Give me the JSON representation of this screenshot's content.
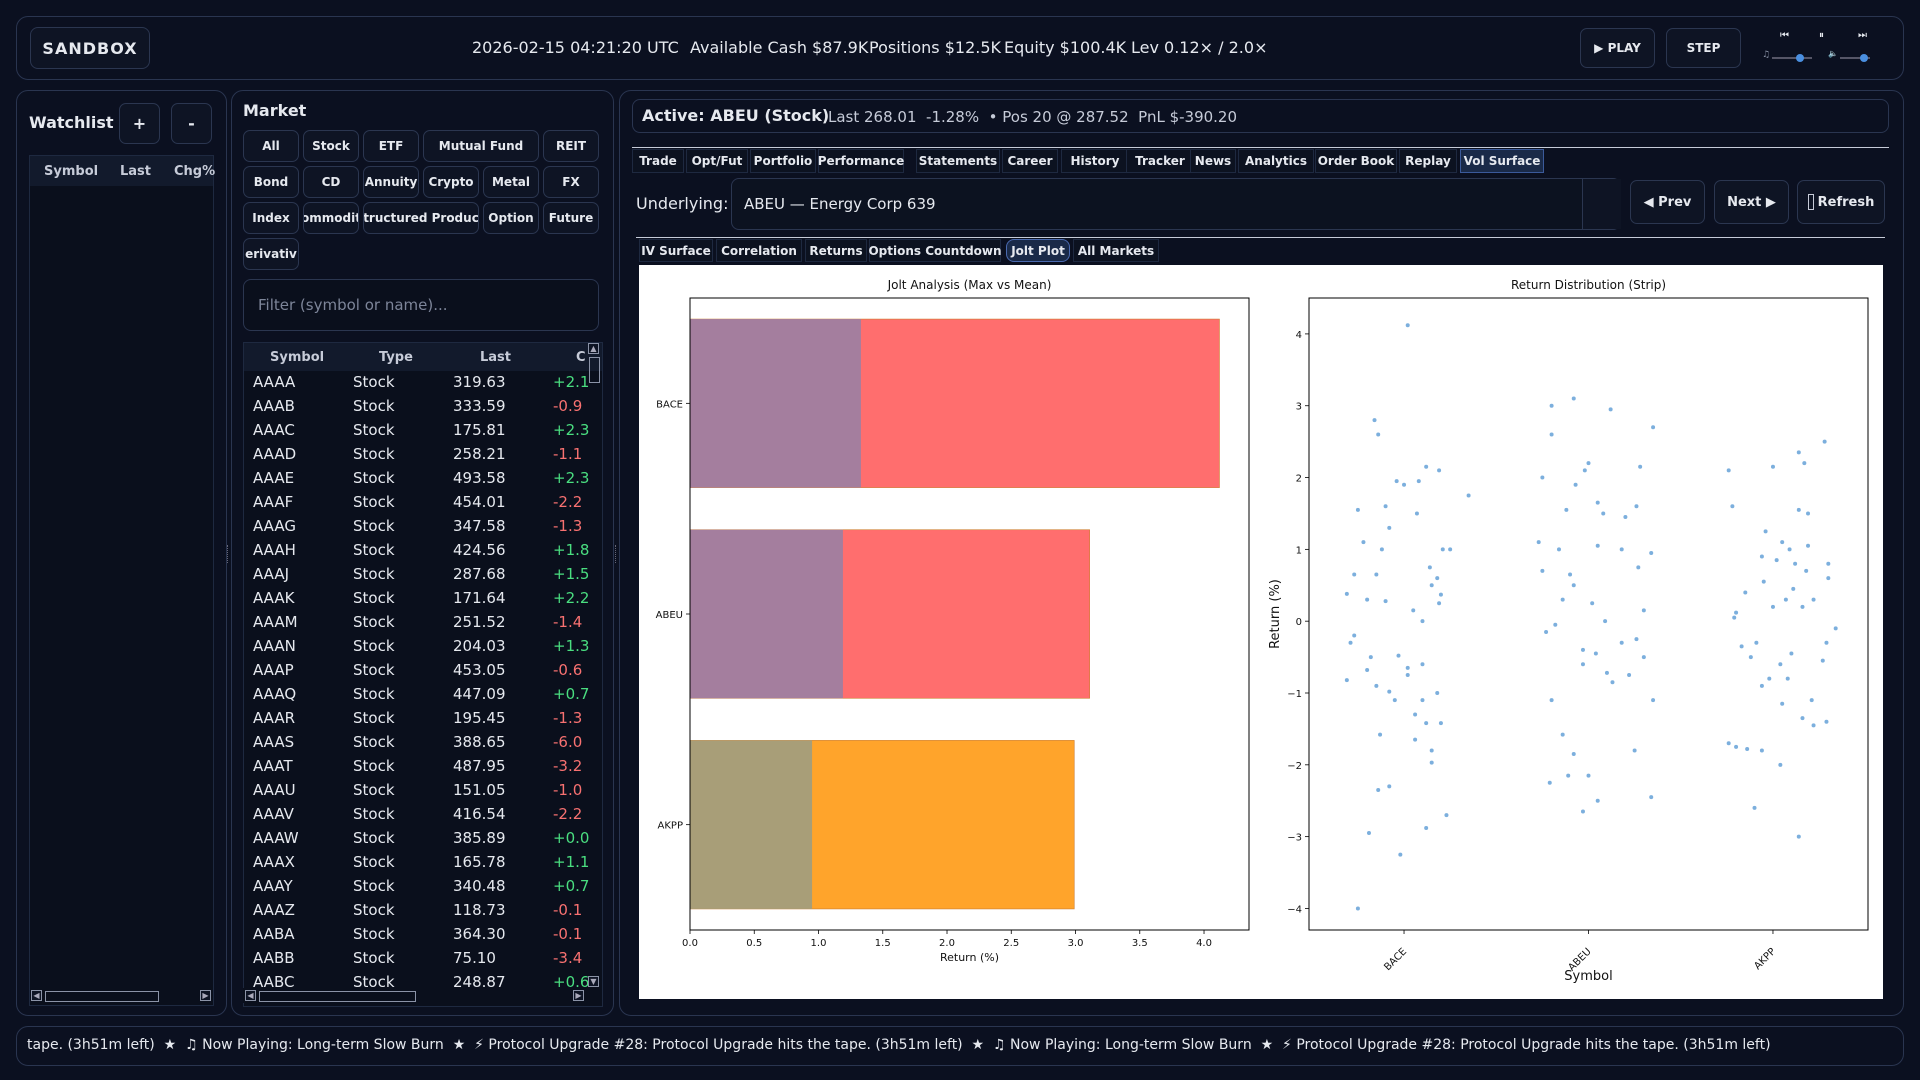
{
  "header": {
    "app_title": "SANDBOX",
    "datetime": "2026-02-15 04:21:20 UTC",
    "cash": "Available Cash $87.9K",
    "positions": "Positions $12.5K",
    "equity": "Equity $100.4K",
    "leverage": "Lev 0.12× / 2.0×",
    "play_label": "▶ PLAY",
    "step_label": "STEP",
    "media": {
      "prev": "⏮",
      "pause": "⏸",
      "next": "⏭",
      "music_icon": "♫",
      "volume_icon": "🔈",
      "music_level": 0.7,
      "volume_level": 0.8
    }
  },
  "watchlist": {
    "title": "Watchlist",
    "add_label": "+",
    "remove_label": "-",
    "columns": [
      "Symbol",
      "Last",
      "Chg%"
    ]
  },
  "market": {
    "title": "Market",
    "filters": [
      "All",
      "Stock",
      "ETF",
      "Mutual Fund",
      "REIT",
      "Bond",
      "CD",
      "Annuity",
      "Crypto",
      "Metal",
      "FX",
      "Index",
      "ommodit",
      "tructured Produc",
      "Option",
      "Future",
      "erivativ"
    ],
    "filter_placeholder": "Filter (symbol or name)...",
    "columns": [
      "Symbol",
      "Type",
      "Last",
      "C"
    ],
    "rows": [
      {
        "symbol": "AAAA",
        "type": "Stock",
        "last": "319.63",
        "chg": "+2.1"
      },
      {
        "symbol": "AAAB",
        "type": "Stock",
        "last": "333.59",
        "chg": "-0.9"
      },
      {
        "symbol": "AAAC",
        "type": "Stock",
        "last": "175.81",
        "chg": "+2.3"
      },
      {
        "symbol": "AAAD",
        "type": "Stock",
        "last": "258.21",
        "chg": "-1.1"
      },
      {
        "symbol": "AAAE",
        "type": "Stock",
        "last": "493.58",
        "chg": "+2.3"
      },
      {
        "symbol": "AAAF",
        "type": "Stock",
        "last": "454.01",
        "chg": "-2.2"
      },
      {
        "symbol": "AAAG",
        "type": "Stock",
        "last": "347.58",
        "chg": "-1.3"
      },
      {
        "symbol": "AAAH",
        "type": "Stock",
        "last": "424.56",
        "chg": "+1.8"
      },
      {
        "symbol": "AAAJ",
        "type": "Stock",
        "last": "287.68",
        "chg": "+1.5"
      },
      {
        "symbol": "AAAK",
        "type": "Stock",
        "last": "171.64",
        "chg": "+2.2"
      },
      {
        "symbol": "AAAM",
        "type": "Stock",
        "last": "251.52",
        "chg": "-1.4"
      },
      {
        "symbol": "AAAN",
        "type": "Stock",
        "last": "204.03",
        "chg": "+1.3"
      },
      {
        "symbol": "AAAP",
        "type": "Stock",
        "last": "453.05",
        "chg": "-0.6"
      },
      {
        "symbol": "AAAQ",
        "type": "Stock",
        "last": "447.09",
        "chg": "+0.7"
      },
      {
        "symbol": "AAAR",
        "type": "Stock",
        "last": "195.45",
        "chg": "-1.3"
      },
      {
        "symbol": "AAAS",
        "type": "Stock",
        "last": "388.65",
        "chg": "-6.0"
      },
      {
        "symbol": "AAAT",
        "type": "Stock",
        "last": "487.95",
        "chg": "-3.2"
      },
      {
        "symbol": "AAAU",
        "type": "Stock",
        "last": "151.05",
        "chg": "-1.0"
      },
      {
        "symbol": "AAAV",
        "type": "Stock",
        "last": "416.54",
        "chg": "-2.2"
      },
      {
        "symbol": "AAAW",
        "type": "Stock",
        "last": "385.89",
        "chg": "+0.0"
      },
      {
        "symbol": "AAAX",
        "type": "Stock",
        "last": "165.78",
        "chg": "+1.1"
      },
      {
        "symbol": "AAAY",
        "type": "Stock",
        "last": "340.48",
        "chg": "+0.7"
      },
      {
        "symbol": "AAAZ",
        "type": "Stock",
        "last": "118.73",
        "chg": "-0.1"
      },
      {
        "symbol": "AABA",
        "type": "Stock",
        "last": "364.30",
        "chg": "-0.1"
      },
      {
        "symbol": "AABB",
        "type": "Stock",
        "last": "75.10",
        "chg": "-3.4"
      },
      {
        "symbol": "AABC",
        "type": "Stock",
        "last": "248.87",
        "chg": "+0.6"
      }
    ]
  },
  "active": {
    "title": "Active: ABEU (Stock)",
    "info": "Last 268.01  -1.28%  • Pos 20 @ 287.52  PnL $-390.20"
  },
  "tabs": [
    "Trade",
    "Opt/Fut",
    "Portfolio",
    "Performance",
    "Statements",
    "Career",
    "History",
    "Tracker",
    "News",
    "Analytics",
    "Order Book",
    "Replay",
    "Vol Surface"
  ],
  "underlying": {
    "label": "Underlying:",
    "value": "ABEU — Energy Corp 639",
    "prev_label": "◀ Prev",
    "next_label": "Next ▶",
    "refresh_label": "Refresh"
  },
  "subtabs": [
    "IV Surface",
    "Correlation",
    "Returns",
    "Options Countdown",
    "Jolt Plot",
    "All Markets"
  ],
  "chart_data": [
    {
      "type": "bar",
      "orientation": "horizontal",
      "title": "Jolt Analysis (Max vs Mean)",
      "xlabel": "Return (%)",
      "ylabel": "",
      "categories": [
        "BACE",
        "ABEU",
        "AKPP"
      ],
      "series": [
        {
          "name": "Max",
          "values": [
            4.12,
            3.11,
            2.99
          ]
        },
        {
          "name": "Mean",
          "values": [
            1.33,
            1.19,
            0.95
          ]
        }
      ],
      "xlim": [
        0,
        4.35
      ],
      "xticks": [
        "0.0",
        "0.5",
        "1.0",
        "1.5",
        "2.0",
        "2.5",
        "3.0",
        "3.5",
        "4.0"
      ],
      "colors": {
        "max": [
          "#ff6e6e",
          "#ff6e6e",
          "#ffa42b"
        ],
        "mean": [
          "#a47e9e",
          "#a47e9e",
          "#a89e78"
        ]
      }
    },
    {
      "type": "scatter",
      "title": "Return Distribution (Strip)",
      "xlabel": "Symbol",
      "ylabel": "Return (%)",
      "categories": [
        "BACE",
        "ABEU",
        "AKPP"
      ],
      "ylim": [
        -4.3,
        4.5
      ],
      "yticks": [
        "4",
        "3",
        "2",
        "1",
        "0",
        "−1",
        "−2",
        "−3",
        "−4"
      ],
      "color": "#5b9bd5",
      "series": [
        {
          "name": "BACE",
          "points": [
            [
              -0.25,
              -4.0
            ],
            [
              -0.19,
              -2.95
            ],
            [
              -0.14,
              -2.35
            ],
            [
              -0.08,
              -2.3
            ],
            [
              -0.02,
              -3.25
            ],
            [
              0.12,
              -2.88
            ],
            [
              0.23,
              -2.7
            ],
            [
              -0.13,
              -1.58
            ],
            [
              0.06,
              -1.65
            ],
            [
              0.15,
              -1.8
            ],
            [
              0.2,
              -1.42
            ],
            [
              0.12,
              -1.42
            ],
            [
              0.15,
              -1.97
            ],
            [
              -0.31,
              -0.82
            ],
            [
              -0.2,
              -0.68
            ],
            [
              -0.15,
              -0.9
            ],
            [
              -0.08,
              -0.98
            ],
            [
              0.02,
              -0.75
            ],
            [
              0.1,
              -1.1
            ],
            [
              0.06,
              -1.3
            ],
            [
              -0.03,
              -0.48
            ],
            [
              -0.29,
              -0.3
            ],
            [
              -0.27,
              -0.2
            ],
            [
              -0.18,
              -0.5
            ],
            [
              0.1,
              -0.6
            ],
            [
              -0.31,
              0.38
            ],
            [
              -0.2,
              0.3
            ],
            [
              -0.1,
              0.28
            ],
            [
              0.05,
              0.15
            ],
            [
              0.15,
              0.5
            ],
            [
              0.19,
              0.25
            ],
            [
              -0.15,
              0.65
            ],
            [
              -0.12,
              1.0
            ],
            [
              -0.22,
              1.1
            ],
            [
              0.14,
              0.75
            ],
            [
              0.21,
              1.0
            ],
            [
              0.25,
              1.0
            ],
            [
              0.18,
              0.6
            ],
            [
              -0.08,
              1.3
            ],
            [
              -0.25,
              1.55
            ],
            [
              -0.1,
              1.6
            ],
            [
              0.0,
              1.9
            ],
            [
              0.08,
              1.95
            ],
            [
              0.19,
              2.1
            ],
            [
              0.35,
              1.75
            ],
            [
              -0.14,
              2.6
            ],
            [
              -0.16,
              2.8
            ],
            [
              0.12,
              2.15
            ],
            [
              0.02,
              4.12
            ],
            [
              -0.04,
              1.95
            ],
            [
              0.07,
              1.5
            ],
            [
              -0.05,
              -1.1
            ],
            [
              0.02,
              -0.65
            ],
            [
              0.18,
              -1.0
            ],
            [
              -0.27,
              0.65
            ],
            [
              0.1,
              0.0
            ],
            [
              0.2,
              0.37
            ]
          ]
        },
        {
          "name": "ABEU",
          "points": [
            [
              -0.2,
              -1.1
            ],
            [
              -0.23,
              -0.15
            ],
            [
              -0.18,
              -0.05
            ],
            [
              -0.14,
              0.3
            ],
            [
              -0.08,
              0.5
            ],
            [
              0.02,
              0.25
            ],
            [
              0.09,
              0.0
            ],
            [
              -0.25,
              0.7
            ],
            [
              -0.1,
              0.65
            ],
            [
              -0.03,
              -0.6
            ],
            [
              0.04,
              -0.45
            ],
            [
              0.1,
              -0.72
            ],
            [
              0.18,
              -0.3
            ],
            [
              0.26,
              -0.25
            ],
            [
              0.3,
              0.15
            ],
            [
              0.35,
              -1.1
            ],
            [
              -0.03,
              -2.65
            ],
            [
              -0.11,
              -2.15
            ],
            [
              -0.08,
              -1.85
            ],
            [
              -0.14,
              -1.58
            ],
            [
              -0.21,
              -2.25
            ],
            [
              0.05,
              -2.5
            ],
            [
              0.0,
              -2.15
            ],
            [
              0.25,
              -1.8
            ],
            [
              0.34,
              -2.45
            ],
            [
              -0.27,
              1.1
            ],
            [
              -0.25,
              2.0
            ],
            [
              -0.2,
              2.6
            ],
            [
              -0.12,
              1.55
            ],
            [
              -0.07,
              1.9
            ],
            [
              0.0,
              2.2
            ],
            [
              0.05,
              1.65
            ],
            [
              0.08,
              1.5
            ],
            [
              0.18,
              1.0
            ],
            [
              0.27,
              0.75
            ],
            [
              0.34,
              0.95
            ],
            [
              -0.2,
              3.0
            ],
            [
              -0.08,
              3.1
            ],
            [
              -0.02,
              2.1
            ],
            [
              0.12,
              2.95
            ],
            [
              0.28,
              2.15
            ],
            [
              0.35,
              2.7
            ],
            [
              0.2,
              1.45
            ],
            [
              0.26,
              1.6
            ],
            [
              0.05,
              1.05
            ],
            [
              -0.16,
              1.0
            ],
            [
              -0.03,
              -0.4
            ],
            [
              0.22,
              -0.75
            ],
            [
              0.13,
              -0.85
            ],
            [
              0.3,
              -0.5
            ]
          ]
        },
        {
          "name": "AKPP",
          "points": [
            [
              -0.2,
              -1.75
            ],
            [
              -0.24,
              -1.7
            ],
            [
              -0.14,
              -1.78
            ],
            [
              -0.06,
              -1.8
            ],
            [
              -0.1,
              -2.6
            ],
            [
              0.04,
              -2.0
            ],
            [
              0.14,
              -3.0
            ],
            [
              0.29,
              -1.4
            ],
            [
              0.22,
              -1.45
            ],
            [
              0.16,
              -1.35
            ],
            [
              0.05,
              -1.15
            ],
            [
              -0.06,
              -0.9
            ],
            [
              -0.02,
              -0.8
            ],
            [
              0.08,
              -0.8
            ],
            [
              0.21,
              -1.1
            ],
            [
              -0.17,
              -0.35
            ],
            [
              -0.21,
              0.05
            ],
            [
              -0.2,
              0.12
            ],
            [
              0.0,
              0.2
            ],
            [
              0.07,
              0.3
            ],
            [
              0.16,
              0.2
            ],
            [
              0.22,
              0.3
            ],
            [
              0.29,
              -0.3
            ],
            [
              0.34,
              -0.1
            ],
            [
              -0.15,
              0.4
            ],
            [
              0.11,
              0.45
            ],
            [
              0.18,
              0.7
            ],
            [
              0.3,
              0.8
            ],
            [
              -0.06,
              0.9
            ],
            [
              0.02,
              0.85
            ],
            [
              0.09,
              1.0
            ],
            [
              0.19,
              1.05
            ],
            [
              -0.22,
              1.6
            ],
            [
              -0.04,
              1.25
            ],
            [
              0.05,
              1.1
            ],
            [
              0.14,
              1.55
            ],
            [
              0.19,
              1.5
            ],
            [
              -0.24,
              2.1
            ],
            [
              0.0,
              2.15
            ],
            [
              0.14,
              2.35
            ],
            [
              0.17,
              2.2
            ],
            [
              0.28,
              2.5
            ],
            [
              -0.12,
              -0.5
            ],
            [
              0.1,
              -0.45
            ],
            [
              0.27,
              -0.55
            ],
            [
              0.04,
              -0.6
            ],
            [
              -0.05,
              0.55
            ],
            [
              0.12,
              0.8
            ],
            [
              0.3,
              0.6
            ],
            [
              -0.09,
              -0.3
            ]
          ]
        }
      ]
    }
  ],
  "ticker": {
    "text": "tape. (3h51m left)  ★  ♫ Now Playing: Long-term Slow Burn  ★  ⚡ Protocol Upgrade #28: Protocol Upgrade hits the tape. (3h51m left)  ★  ♫ Now Playing: Long-term Slow Burn  ★  ⚡ Protocol Upgrade #28: Protocol Upgrade hits the tape. (3h51m left)"
  },
  "colors": {
    "positive": "#4ade80",
    "negative": "#f87171",
    "accent": "#3b5a9a"
  }
}
